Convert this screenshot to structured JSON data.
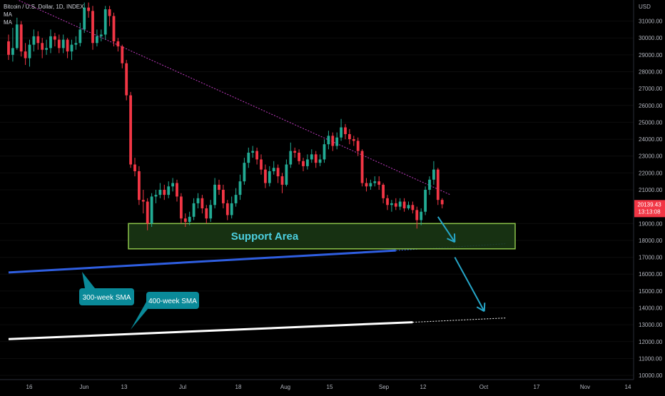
{
  "header": {
    "symbol": "Bitcoin / U.S. Dollar, 1D, INDEX",
    "indicator_1": "MA",
    "indicator_2": "MA"
  },
  "price_axis": {
    "currency": "USD",
    "labels": [
      "31000.00",
      "30000.00",
      "29000.00",
      "28000.00",
      "27000.00",
      "26000.00",
      "25000.00",
      "24000.00",
      "23000.00",
      "22000.00",
      "21000.00",
      "19000.00",
      "18000.00",
      "17000.00",
      "16000.00",
      "15000.00",
      "14000.00",
      "13000.00",
      "12000.00",
      "11000.00",
      "10000.00"
    ],
    "current_price": "20139.43",
    "countdown": "13:13:08",
    "current_price_color": "#f23645"
  },
  "time_axis": {
    "labels": [
      "16",
      "Jun",
      "13",
      "Jul",
      "18",
      "Aug",
      "15",
      "Sep",
      "12",
      "Oct",
      "17",
      "Nov",
      "14"
    ]
  },
  "annotations": {
    "support_area": "Support Area",
    "sma300": "300-week SMA",
    "sma400": "400-week SMA"
  },
  "colors": {
    "up": "#22ab94",
    "down": "#f23645",
    "support_fill": "#1b3a15",
    "support_border": "#8bc34a",
    "support_text": "#4dd0e1",
    "trendline": "#c13cc1",
    "sma300": "#2f5ee0",
    "sma400": "#ffffff",
    "label_bg": "#0a8a99",
    "arrow": "#26a6c8"
  },
  "chart_data": {
    "type": "candlestick",
    "ylim": [
      9750,
      32250
    ],
    "support_zone": [
      17500,
      19000
    ],
    "trendline": [
      [
        0,
        32500
      ],
      [
        105,
        20700
      ]
    ],
    "sma_300_week": [
      [
        0,
        16100
      ],
      [
        92,
        17400
      ],
      [
        118,
        17800
      ]
    ],
    "sma_400_week": [
      [
        0,
        12150
      ],
      [
        96,
        13150
      ],
      [
        118,
        13400
      ]
    ],
    "forecast_arrows": [
      [
        [
          102,
          19400
        ],
        [
          106,
          17900
        ]
      ],
      [
        [
          106,
          17000
        ],
        [
          113,
          13800
        ]
      ]
    ],
    "candles": [
      [
        29800,
        29000,
        30200,
        28700
      ],
      [
        29000,
        29400,
        30600,
        28600
      ],
      [
        29400,
        30800,
        31200,
        29300
      ],
      [
        30800,
        29200,
        31000,
        28900
      ],
      [
        29200,
        28800,
        29700,
        28400
      ],
      [
        28800,
        29600,
        29900,
        28300
      ],
      [
        29600,
        30100,
        30500,
        29200
      ],
      [
        30100,
        29700,
        30400,
        29300
      ],
      [
        29700,
        29300,
        30000,
        28800
      ],
      [
        29300,
        29400,
        29900,
        29000
      ],
      [
        29400,
        30100,
        30500,
        29100
      ],
      [
        30100,
        29900,
        30300,
        29500
      ],
      [
        29900,
        29400,
        30200,
        29100
      ],
      [
        29400,
        29900,
        30200,
        29100
      ],
      [
        29900,
        29200,
        30000,
        28800
      ],
      [
        29200,
        29600,
        29900,
        28700
      ],
      [
        29600,
        29700,
        30100,
        29300
      ],
      [
        29700,
        30500,
        30900,
        29500
      ],
      [
        30500,
        31800,
        32100,
        30300
      ],
      [
        31800,
        31600,
        32100,
        31200
      ],
      [
        31600,
        29700,
        31900,
        29300
      ],
      [
        29700,
        30100,
        30500,
        29500
      ],
      [
        30100,
        30200,
        30500,
        29800
      ],
      [
        30200,
        31700,
        31900,
        29900
      ],
      [
        31700,
        31300,
        31900,
        30700
      ],
      [
        31300,
        29800,
        31500,
        29500
      ],
      [
        29800,
        29500,
        30000,
        29200
      ],
      [
        29500,
        28500,
        29600,
        28200
      ],
      [
        28500,
        26600,
        28700,
        26300
      ],
      [
        26600,
        22500,
        26800,
        22300
      ],
      [
        22500,
        22100,
        22900,
        21800
      ],
      [
        22100,
        20400,
        22400,
        20100
      ],
      [
        20400,
        20300,
        21000,
        19600
      ],
      [
        20300,
        19000,
        20500,
        18600
      ],
      [
        19000,
        20600,
        20800,
        18800
      ],
      [
        20600,
        20700,
        21000,
        20200
      ],
      [
        20700,
        21000,
        21400,
        20500
      ],
      [
        21000,
        20700,
        21300,
        20400
      ],
      [
        20700,
        21200,
        21500,
        20500
      ],
      [
        21200,
        21400,
        21700,
        20900
      ],
      [
        21400,
        20600,
        21600,
        20300
      ],
      [
        20600,
        19300,
        20800,
        19000
      ],
      [
        19300,
        19100,
        19600,
        18800
      ],
      [
        19100,
        19400,
        19700,
        18900
      ],
      [
        19400,
        20200,
        20500,
        19200
      ],
      [
        20200,
        20500,
        20800,
        19900
      ],
      [
        20500,
        19900,
        20700,
        19600
      ],
      [
        19900,
        19300,
        20100,
        19000
      ],
      [
        19300,
        20100,
        20400,
        19100
      ],
      [
        20100,
        21300,
        21700,
        19900
      ],
      [
        21300,
        21000,
        21600,
        20700
      ],
      [
        21000,
        20200,
        21300,
        19900
      ],
      [
        20200,
        19500,
        20400,
        19200
      ],
      [
        19500,
        20200,
        20600,
        19300
      ],
      [
        20200,
        20700,
        21100,
        20000
      ],
      [
        20700,
        21500,
        21900,
        20400
      ],
      [
        21500,
        22600,
        22900,
        21300
      ],
      [
        22600,
        23200,
        23500,
        22300
      ],
      [
        23200,
        23300,
        23600,
        22900
      ],
      [
        23300,
        22800,
        23500,
        22500
      ],
      [
        22800,
        22200,
        23100,
        21900
      ],
      [
        22200,
        21400,
        22500,
        21100
      ],
      [
        21400,
        22100,
        22400,
        21200
      ],
      [
        22100,
        22300,
        22700,
        21900
      ],
      [
        22300,
        21800,
        22500,
        21400
      ],
      [
        21800,
        21300,
        22000,
        20800
      ],
      [
        21300,
        22500,
        22800,
        21200
      ],
      [
        22500,
        23300,
        23800,
        22300
      ],
      [
        23300,
        23200,
        23500,
        22900
      ],
      [
        23200,
        22700,
        23400,
        22500
      ],
      [
        22700,
        22400,
        22900,
        22100
      ],
      [
        22400,
        22800,
        23100,
        22200
      ],
      [
        22800,
        23100,
        23400,
        22600
      ],
      [
        23100,
        22600,
        23300,
        22300
      ],
      [
        22600,
        22800,
        23100,
        22400
      ],
      [
        22800,
        23700,
        24000,
        22600
      ],
      [
        23700,
        24200,
        24500,
        23400
      ],
      [
        24200,
        23600,
        24400,
        23300
      ],
      [
        23600,
        24100,
        24400,
        23400
      ],
      [
        24100,
        24700,
        25200,
        23900
      ],
      [
        24700,
        24300,
        24900,
        24000
      ],
      [
        24300,
        24000,
        24600,
        23700
      ],
      [
        24000,
        23900,
        24200,
        23600
      ],
      [
        23900,
        23300,
        24100,
        23000
      ],
      [
        23300,
        21400,
        23400,
        21200
      ],
      [
        21400,
        21200,
        21700,
        20900
      ],
      [
        21200,
        21400,
        21600,
        21000
      ],
      [
        21400,
        21500,
        21800,
        21200
      ],
      [
        21500,
        21300,
        21800,
        21000
      ],
      [
        21300,
        20500,
        21400,
        20200
      ],
      [
        20500,
        20100,
        20700,
        19800
      ],
      [
        20100,
        20200,
        20400,
        19700
      ],
      [
        20200,
        20000,
        20500,
        19800
      ],
      [
        20000,
        20300,
        20500,
        19800
      ],
      [
        20300,
        19900,
        20500,
        19700
      ],
      [
        19900,
        20100,
        20300,
        19800
      ],
      [
        20100,
        19800,
        20300,
        19600
      ],
      [
        19800,
        19200,
        20000,
        18700
      ],
      [
        19200,
        19700,
        19900,
        18900
      ],
      [
        19700,
        21000,
        21200,
        19500
      ],
      [
        21000,
        21600,
        21800,
        20700
      ],
      [
        21600,
        22200,
        22700,
        21300
      ],
      [
        22200,
        20400,
        22300,
        20100
      ],
      [
        20400,
        20139,
        20500,
        19900
      ]
    ]
  }
}
